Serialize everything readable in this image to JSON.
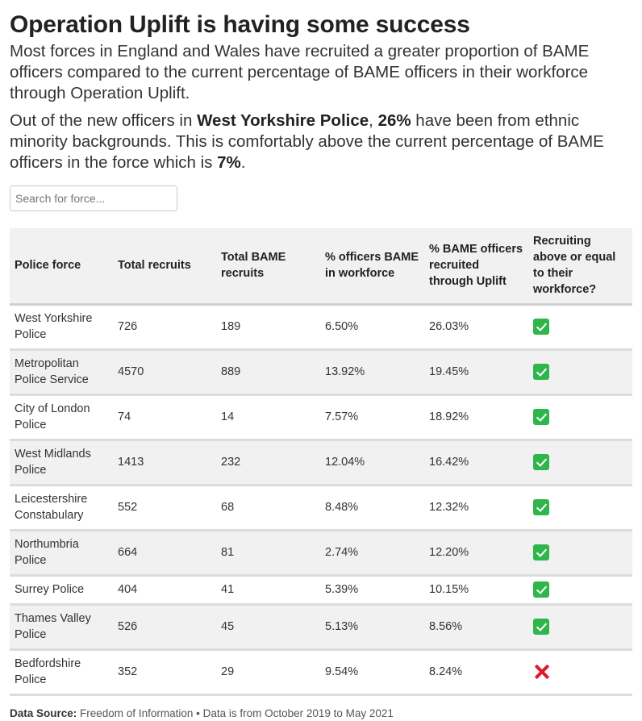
{
  "title": "Operation Uplift is having some success",
  "subtitle": "Most forces in England and Wales have recruited a greater proportion of BAME officers compared to the current percentage of BAME officers in their workforce through Operation Uplift.",
  "paragraph": {
    "part1": "Out of the new officers in ",
    "force": "West Yorkshire Police",
    "part2": ", ",
    "recruited_pct": "26%",
    "part3": " have been from ethnic minority backgrounds. This is comfortably above the current percentage of BAME officers in the force which is ",
    "workforce_pct": "7%",
    "part4": "."
  },
  "search": {
    "placeholder": "Search for force..."
  },
  "table": {
    "columns": [
      "Police force",
      "Total recruits",
      "Total BAME recruits",
      "% officers BAME in workforce",
      "% BAME officers recruited through Uplift",
      "Recruiting above or equal to their workforce?"
    ],
    "rows": [
      {
        "force": "West Yorkshire Police",
        "total": "726",
        "bame": "189",
        "workforce_pct": "6.50%",
        "uplift_pct": "26.03%",
        "above": true,
        "icon": "green-check-icon"
      },
      {
        "force": "Metropolitan Police Service",
        "total": "4570",
        "bame": "889",
        "workforce_pct": "13.92%",
        "uplift_pct": "19.45%",
        "above": true,
        "icon": "green-check-icon"
      },
      {
        "force": "City of London Police",
        "total": "74",
        "bame": "14",
        "workforce_pct": "7.57%",
        "uplift_pct": "18.92%",
        "above": true,
        "icon": "green-check-icon"
      },
      {
        "force": "West Midlands Police",
        "total": "1413",
        "bame": "232",
        "workforce_pct": "12.04%",
        "uplift_pct": "16.42%",
        "above": true,
        "icon": "green-check-icon"
      },
      {
        "force": "Leicestershire Constabulary",
        "total": "552",
        "bame": "68",
        "workforce_pct": "8.48%",
        "uplift_pct": "12.32%",
        "above": true,
        "icon": "green-check-icon"
      },
      {
        "force": "Northumbria Police",
        "total": "664",
        "bame": "81",
        "workforce_pct": "2.74%",
        "uplift_pct": "12.20%",
        "above": true,
        "icon": "green-check-icon"
      },
      {
        "force": "Surrey Police",
        "total": "404",
        "bame": "41",
        "workforce_pct": "5.39%",
        "uplift_pct": "10.15%",
        "above": true,
        "icon": "green-check-icon"
      },
      {
        "force": "Thames Valley Police",
        "total": "526",
        "bame": "45",
        "workforce_pct": "5.13%",
        "uplift_pct": "8.56%",
        "above": true,
        "icon": "green-check-icon"
      },
      {
        "force": "Bedfordshire Police",
        "total": "352",
        "bame": "29",
        "workforce_pct": "9.54%",
        "uplift_pct": "8.24%",
        "above": false,
        "icon": "red-cross-icon"
      }
    ]
  },
  "source": {
    "label": "Data Source:",
    "text": " Freedom of Information • Data is from October 2019 to May 2021"
  },
  "colors": {
    "check": "#2fb64a",
    "cross": "#e0182b",
    "row_alt": "#f1f1f1"
  }
}
